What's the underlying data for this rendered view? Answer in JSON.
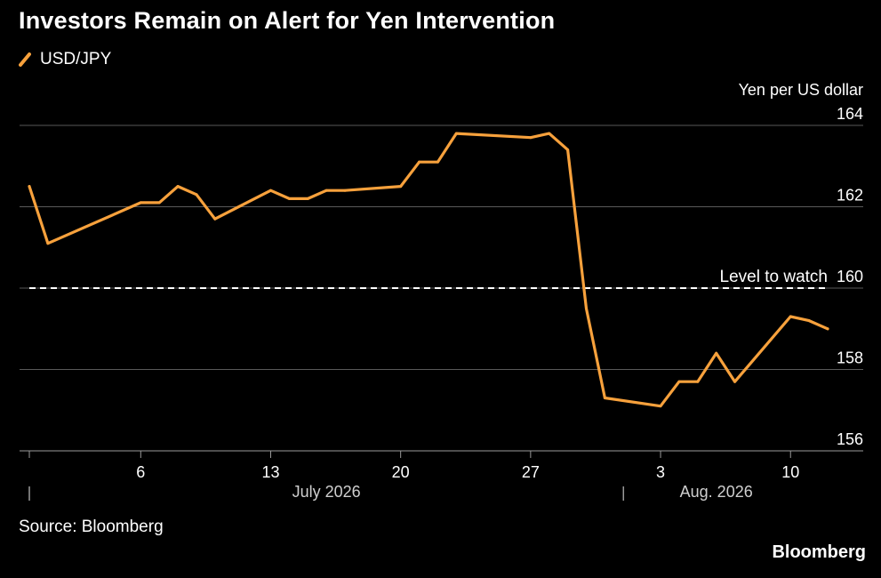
{
  "title": "Investors Remain on Alert for Yen Intervention",
  "source": "Source: Bloomberg",
  "brand": "Bloomberg",
  "colors": {
    "series": "#f7a13c",
    "background": "#000000",
    "grid": "#595959",
    "text": "#ffffff",
    "axis_text": "#cfcfcf"
  },
  "chart_data": {
    "type": "line",
    "ylabel": "Yen per US dollar",
    "ylim": [
      156,
      164
    ],
    "yticks": [
      156,
      158,
      160,
      162,
      164
    ],
    "xlim": [
      "2026-06-30",
      "2026-08-12"
    ],
    "xticks": [
      {
        "date": "2026-07-06",
        "label": "6"
      },
      {
        "date": "2026-07-13",
        "label": "13"
      },
      {
        "date": "2026-07-20",
        "label": "20"
      },
      {
        "date": "2026-07-27",
        "label": "27"
      },
      {
        "date": "2026-08-03",
        "label": "3"
      },
      {
        "date": "2026-08-10",
        "label": "10"
      }
    ],
    "month_labels": [
      {
        "label": "July 2026",
        "date": "2026-07-16"
      },
      {
        "label": "Aug. 2026",
        "date": "2026-08-06"
      }
    ],
    "month_separators": [
      "2026-06-30",
      "2026-08-01"
    ],
    "grid": true,
    "legend": "top-left",
    "reference_line": {
      "value": 160,
      "label": "Level to watch"
    },
    "series": [
      {
        "name": "USD/JPY",
        "points": [
          {
            "x": "2026-06-30",
            "y": 162.5
          },
          {
            "x": "2026-07-01",
            "y": 161.1
          },
          {
            "x": "2026-07-06",
            "y": 162.1
          },
          {
            "x": "2026-07-07",
            "y": 162.1
          },
          {
            "x": "2026-07-08",
            "y": 162.5
          },
          {
            "x": "2026-07-09",
            "y": 162.3
          },
          {
            "x": "2026-07-10",
            "y": 161.7
          },
          {
            "x": "2026-07-13",
            "y": 162.4
          },
          {
            "x": "2026-07-14",
            "y": 162.2
          },
          {
            "x": "2026-07-15",
            "y": 162.2
          },
          {
            "x": "2026-07-16",
            "y": 162.4
          },
          {
            "x": "2026-07-17",
            "y": 162.4
          },
          {
            "x": "2026-07-20",
            "y": 162.5
          },
          {
            "x": "2026-07-21",
            "y": 163.1
          },
          {
            "x": "2026-07-22",
            "y": 163.1
          },
          {
            "x": "2026-07-23",
            "y": 163.8
          },
          {
            "x": "2026-07-27",
            "y": 163.7
          },
          {
            "x": "2026-07-28",
            "y": 163.8
          },
          {
            "x": "2026-07-29",
            "y": 163.4
          },
          {
            "x": "2026-07-30",
            "y": 159.5
          },
          {
            "x": "2026-07-31",
            "y": 157.3
          },
          {
            "x": "2026-08-03",
            "y": 157.1
          },
          {
            "x": "2026-08-04",
            "y": 157.7
          },
          {
            "x": "2026-08-05",
            "y": 157.7
          },
          {
            "x": "2026-08-06",
            "y": 158.4
          },
          {
            "x": "2026-08-07",
            "y": 157.7
          },
          {
            "x": "2026-08-10",
            "y": 159.3
          },
          {
            "x": "2026-08-11",
            "y": 159.2
          },
          {
            "x": "2026-08-12",
            "y": 159.0
          }
        ]
      }
    ]
  }
}
